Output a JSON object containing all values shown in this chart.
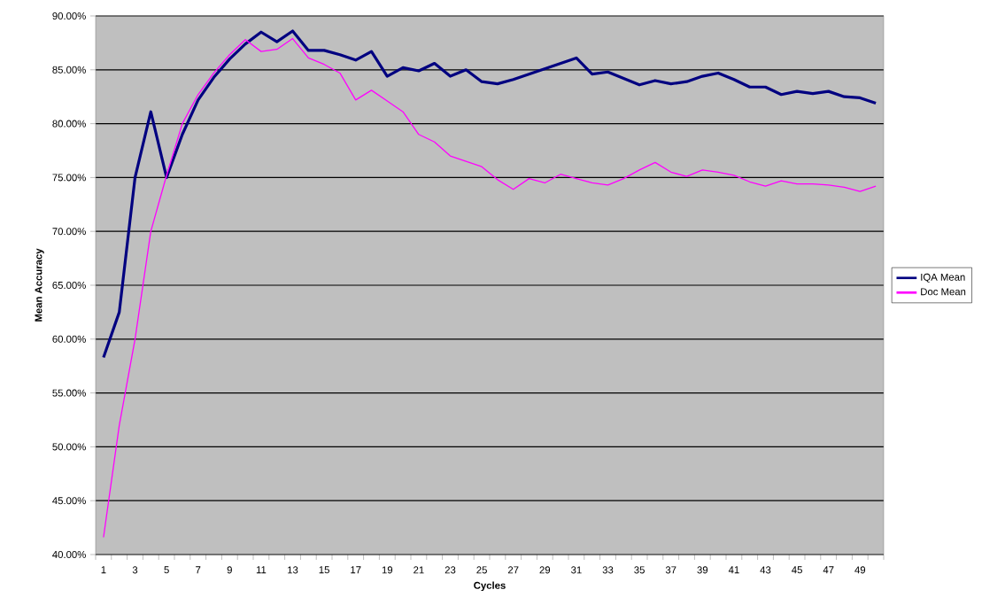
{
  "chart_data": {
    "type": "line",
    "xlabel": "Cycles",
    "ylabel": "Mean Accuracy",
    "categories": [
      "1",
      null,
      "3",
      null,
      "5",
      null,
      "7",
      null,
      "9",
      null,
      "11",
      null,
      "13",
      null,
      "15",
      null,
      "17",
      null,
      "19",
      null,
      "21",
      null,
      "23",
      null,
      "25",
      null,
      "27",
      null,
      "29",
      null,
      "31",
      null,
      "33",
      null,
      "35",
      null,
      "37",
      null,
      "39",
      null,
      "41",
      null,
      "43",
      null,
      "45",
      null,
      "47",
      null,
      "49",
      null
    ],
    "series": [
      {
        "name": "IQA Mean",
        "color": "#000080",
        "values": [
          58.3,
          62.5,
          75,
          81.1,
          75,
          79,
          82.2,
          84.3,
          86,
          87.4,
          88.5,
          87.6,
          88.6,
          86.8,
          86.8,
          86.4,
          85.9,
          86.7,
          84.4,
          85.2,
          84.9,
          85.6,
          84.4,
          85,
          83.9,
          83.7,
          84.1,
          84.6,
          85.1,
          85.6,
          86.1,
          84.6,
          84.8,
          84.2,
          83.6,
          84,
          83.7,
          83.9,
          84.4,
          84.7,
          84.1,
          83.4,
          83.4,
          82.7,
          83,
          82.8,
          83,
          82.5,
          82.4,
          81.9
        ]
      },
      {
        "name": "Doc Mean",
        "color": "#ff00ff",
        "values": [
          41.6,
          52,
          60,
          70,
          75.2,
          80,
          82.7,
          84.7,
          86.4,
          87.8,
          86.7,
          86.9,
          87.9,
          86.1,
          85.5,
          84.7,
          82.2,
          83.1,
          82.1,
          81.1,
          79,
          78.3,
          77,
          76.5,
          76,
          74.8,
          73.9,
          74.9,
          74.5,
          75.3,
          74.9,
          74.5,
          74.3,
          74.9,
          75.7,
          76.4,
          75.5,
          75.1,
          75.7,
          75.5,
          75.2,
          74.6,
          74.2,
          74.7,
          74.4,
          74.4,
          74.3,
          74.1,
          73.7,
          74.2
        ]
      }
    ],
    "ylim": [
      40,
      90
    ],
    "yticks": [
      {
        "value": 40,
        "label": "40.00%"
      },
      {
        "value": 45,
        "label": "45.00%"
      },
      {
        "value": 50,
        "label": "50.00%"
      },
      {
        "value": 55,
        "label": "55.00%"
      },
      {
        "value": 60,
        "label": "60.00%"
      },
      {
        "value": 65,
        "label": "65.00%"
      },
      {
        "value": 70,
        "label": "70.00%"
      },
      {
        "value": 75,
        "label": "75.00%"
      },
      {
        "value": 80,
        "label": "80.00%"
      },
      {
        "value": 85,
        "label": "85.00%"
      },
      {
        "value": 90,
        "label": "90.00%"
      }
    ],
    "grid": "y",
    "legend": "right",
    "marker": "none",
    "line_style": "solid"
  }
}
